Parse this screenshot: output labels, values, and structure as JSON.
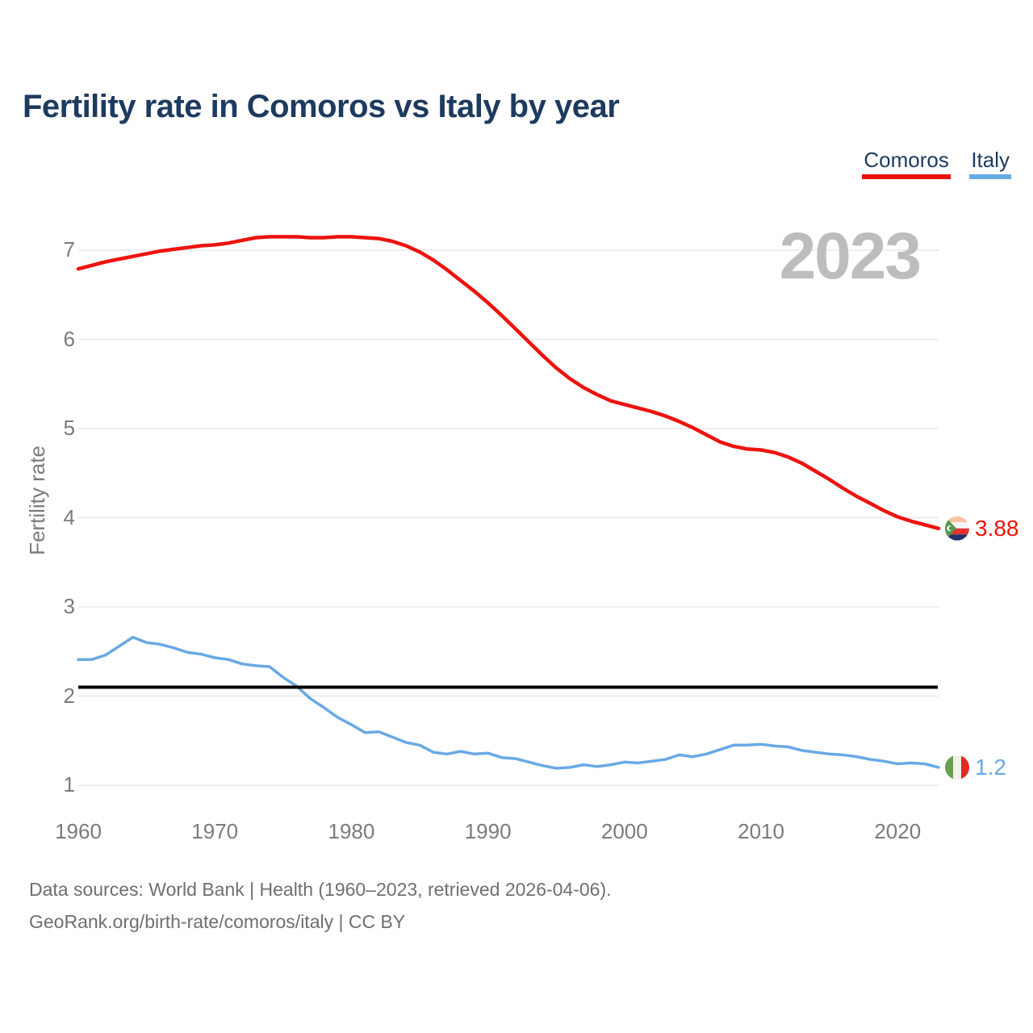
{
  "title": "Fertility rate in Comoros vs Italy by year",
  "watermark": "2023",
  "ylabel": "Fertility rate",
  "legend": [
    {
      "label": "Comoros",
      "color": "#ec130e"
    },
    {
      "label": "Italy",
      "color": "#68a9e5"
    }
  ],
  "footer": {
    "line1": "Data sources: World Bank | Health (1960–2023, retrieved 2026-04-06).",
    "line2": "GeoRank.org/birth-rate/comoros/italy | CC BY"
  },
  "chart_data": {
    "type": "line",
    "title": "Fertility rate in Comoros vs Italy by year",
    "xlabel": "",
    "ylabel": "Fertility rate",
    "x_start": 1960,
    "x_end": 2023,
    "xticks": [
      1960,
      1970,
      1980,
      1990,
      2000,
      2010,
      2020
    ],
    "yticks": [
      1,
      2,
      3,
      4,
      5,
      6,
      7
    ],
    "ylim": [
      0.7,
      7.3
    ],
    "grid": "horizontal",
    "legend_position": "top-right",
    "watermark": "2023",
    "reference_line": {
      "value": 2.1,
      "color": "#000000",
      "name": "replacement-rate"
    },
    "series": [
      {
        "name": "Comoros",
        "color": "#ec130e",
        "end_label": "3.88",
        "flag_icon": "comoros-flag-icon",
        "values": [
          6.79,
          6.83,
          6.87,
          6.9,
          6.93,
          6.96,
          6.99,
          7.01,
          7.03,
          7.05,
          7.06,
          7.08,
          7.11,
          7.14,
          7.15,
          7.15,
          7.15,
          7.14,
          7.14,
          7.15,
          7.15,
          7.14,
          7.13,
          7.1,
          7.05,
          6.98,
          6.89,
          6.78,
          6.66,
          6.54,
          6.41,
          6.27,
          6.12,
          5.97,
          5.82,
          5.68,
          5.56,
          5.46,
          5.38,
          5.31,
          5.27,
          5.23,
          5.19,
          5.14,
          5.08,
          5.01,
          4.93,
          4.85,
          4.8,
          4.77,
          4.76,
          4.73,
          4.68,
          4.61,
          4.52,
          4.43,
          4.33,
          4.24,
          4.16,
          4.08,
          4.01,
          3.96,
          3.92,
          3.88
        ]
      },
      {
        "name": "Italy",
        "color": "#68a9e5",
        "end_label": "1.2",
        "flag_icon": "italy-flag-icon",
        "values": [
          2.41,
          2.41,
          2.46,
          2.56,
          2.66,
          2.6,
          2.58,
          2.54,
          2.49,
          2.47,
          2.43,
          2.41,
          2.36,
          2.34,
          2.33,
          2.21,
          2.11,
          1.97,
          1.87,
          1.76,
          1.68,
          1.59,
          1.6,
          1.54,
          1.48,
          1.45,
          1.37,
          1.35,
          1.38,
          1.35,
          1.36,
          1.31,
          1.3,
          1.26,
          1.22,
          1.19,
          1.2,
          1.23,
          1.21,
          1.23,
          1.26,
          1.25,
          1.27,
          1.29,
          1.34,
          1.32,
          1.35,
          1.4,
          1.45,
          1.45,
          1.46,
          1.44,
          1.43,
          1.39,
          1.37,
          1.35,
          1.34,
          1.32,
          1.29,
          1.27,
          1.24,
          1.25,
          1.24,
          1.2
        ]
      }
    ]
  }
}
